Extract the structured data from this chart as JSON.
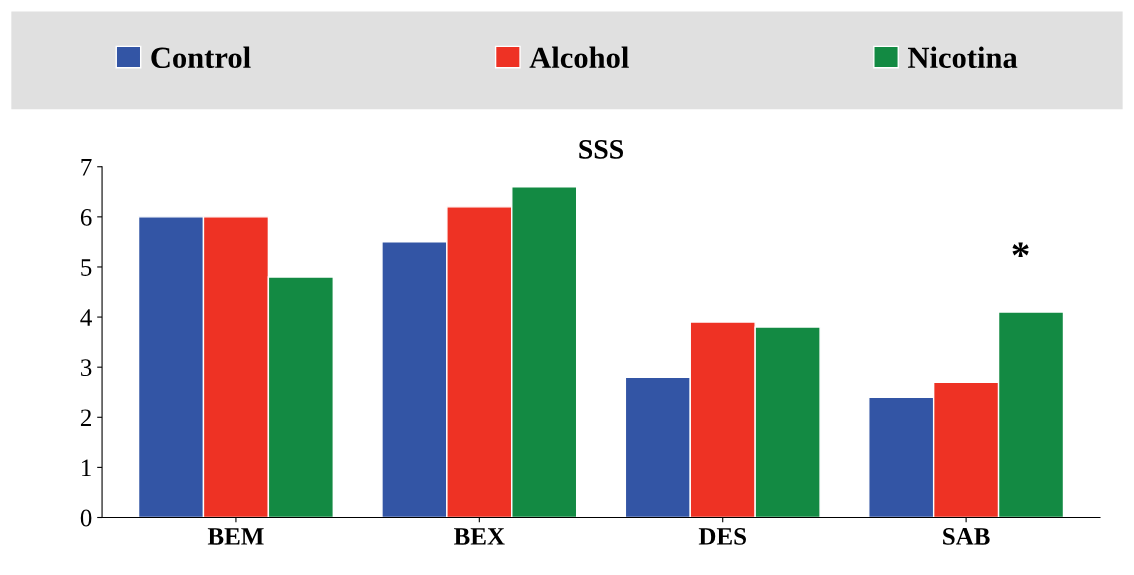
{
  "chart_data": {
    "type": "bar",
    "title": "SSS",
    "categories": [
      "BEM",
      "BEX",
      "DES",
      "SAB"
    ],
    "series": [
      {
        "name": "Control",
        "color": "#3355a5",
        "values": [
          6.0,
          5.5,
          2.8,
          2.4
        ]
      },
      {
        "name": "Alcohol",
        "color": "#ee3224",
        "values": [
          6.0,
          6.2,
          3.9,
          2.7
        ]
      },
      {
        "name": "Nicotina",
        "color": "#138a43",
        "values": [
          4.8,
          6.6,
          3.8,
          4.1
        ]
      }
    ],
    "ylim": [
      0,
      7
    ],
    "yticks": [
      0,
      1,
      2,
      3,
      4,
      5,
      6,
      7
    ],
    "annotations": [
      "*"
    ],
    "grid": false,
    "legend": "top"
  }
}
